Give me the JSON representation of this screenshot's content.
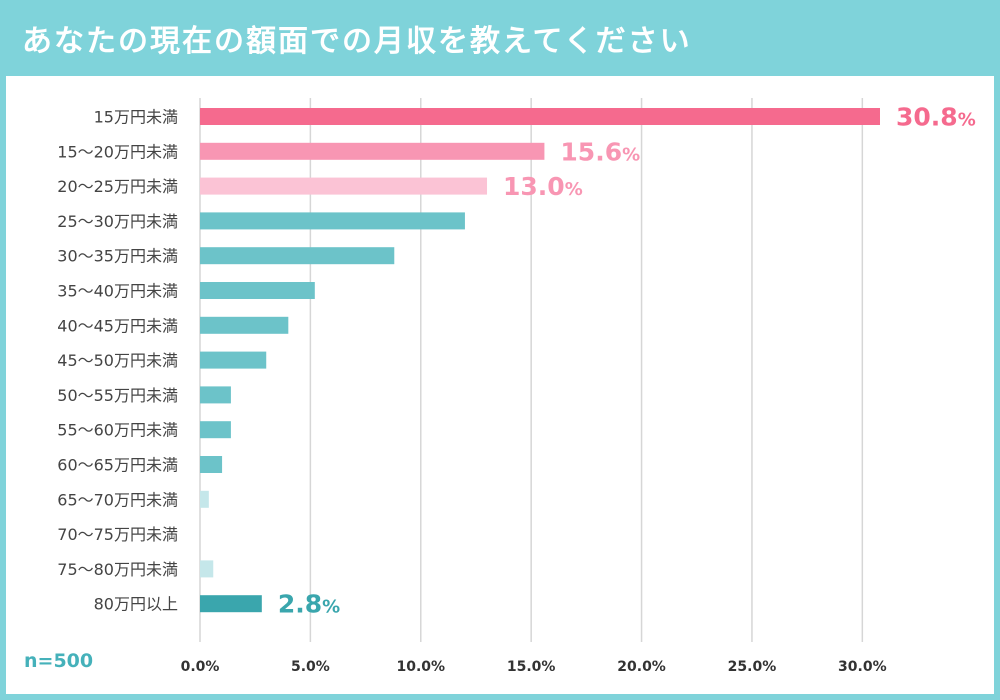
{
  "title": "あなたの現在の額面での月収を教えてください",
  "sample_size": "n=500",
  "colors": {
    "background": "#7fd3da",
    "panel": "#ffffff",
    "grid": "#d6d6d6",
    "highlight_1": "#f56a8e",
    "highlight_2": "#f896b3",
    "highlight_3": "#fbc3d5",
    "teal": "#6cc3c9",
    "teal_light": "#c5e7ea",
    "teal_dark": "#3aa6ad"
  },
  "chart_data": {
    "type": "bar",
    "orientation": "horizontal",
    "title": "あなたの現在の額面での月収を教えてください",
    "categories": [
      "15万円未満",
      "15〜20万円未満",
      "20〜25万円未満",
      "25〜30万円未満",
      "30〜35万円未満",
      "35〜40万円未満",
      "40〜45万円未満",
      "45〜50万円未満",
      "50〜55万円未満",
      "55〜60万円未満",
      "60〜65万円未満",
      "65〜70万円未満",
      "70〜75万円未満",
      "75〜80万円未満",
      "80万円以上"
    ],
    "values": [
      30.8,
      15.6,
      13.0,
      12.0,
      8.8,
      5.2,
      4.0,
      3.0,
      1.4,
      1.4,
      1.0,
      0.4,
      0.0,
      0.6,
      2.8
    ],
    "bar_colors": [
      "#f56a8e",
      "#f896b3",
      "#fbc3d5",
      "#6cc3c9",
      "#6cc3c9",
      "#6cc3c9",
      "#6cc3c9",
      "#6cc3c9",
      "#6cc3c9",
      "#6cc3c9",
      "#6cc3c9",
      "#c5e7ea",
      "#c5e7ea",
      "#c5e7ea",
      "#3aa6ad"
    ],
    "value_labels": [
      {
        "index": 0,
        "main": "30.8",
        "unit": "%",
        "color": "#f56a8e"
      },
      {
        "index": 1,
        "main": "15.6",
        "unit": "%",
        "color": "#f896b3"
      },
      {
        "index": 2,
        "main": "13.0",
        "unit": "%",
        "color": "#f896b3"
      },
      {
        "index": 14,
        "main": "2.8",
        "unit": "%",
        "color": "#3aa6ad"
      }
    ],
    "xlim": [
      0,
      30.8
    ],
    "x_ticks": [
      0,
      5,
      10,
      15,
      20,
      25,
      30
    ],
    "x_tick_labels": [
      "0.0%",
      "5.0%",
      "10.0%",
      "15.0%",
      "20.0%",
      "25.0%",
      "30.0%"
    ],
    "grid": true
  }
}
